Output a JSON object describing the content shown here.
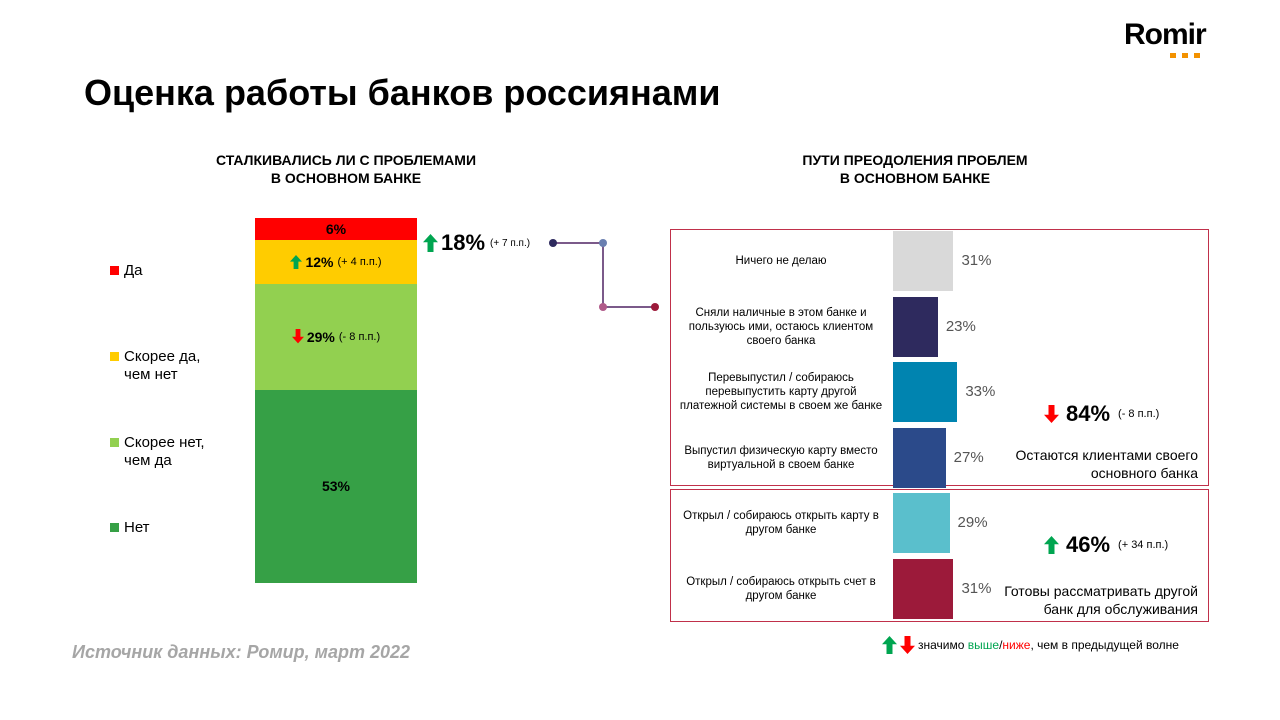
{
  "logo": "Romir",
  "title": "Оценка работы банков россиянами",
  "source": "Источник данных: Ромир, март 2022",
  "footnote": {
    "prefix": "значимо",
    "higher": "выше",
    "separator": "/",
    "lower": "ниже",
    "suffix": ", чем в предыдущей волне"
  },
  "chart_data": [
    {
      "type": "stacked-bar",
      "title": [
        "СТАЛКИВАЛИСЬ ЛИ С ПРОБЛЕМАМИ",
        "В ОСНОВНОМ БАНКЕ"
      ],
      "series": [
        {
          "name": "Да",
          "color": "#ff0000",
          "values": [
            6
          ],
          "value_labels": [
            "6%"
          ]
        },
        {
          "name": "Скорее да, чем нет",
          "color": "#ffcc00",
          "values": [
            12
          ],
          "value_labels": [
            "12%"
          ],
          "change": "(+ 4 п.п.)",
          "direction": "up"
        },
        {
          "name": "Скорее нет, чем да",
          "color": "#92d050",
          "values": [
            29
          ],
          "value_labels": [
            "29%"
          ],
          "change": "(- 8 п.п.)",
          "direction": "down"
        },
        {
          "name": "Нет",
          "color": "#36a046",
          "values": [
            53
          ],
          "value_labels": [
            "53%"
          ]
        }
      ],
      "summary": {
        "value": 18,
        "value_label": "18%",
        "change": "(+ 7 п.п.)",
        "direction": "up"
      }
    },
    {
      "type": "hbar",
      "title": [
        "ПУТИ ПРЕОДОЛЕНИЯ ПРОБЛЕМ",
        "В ОСНОВНОМ БАНКЕ"
      ],
      "categories": [
        "Ничего не делаю",
        "Сняли наличные в этом банке и пользуюсь ими, остаюсь клиентом своего банка",
        "Перевыпустил / собираюсь перевыпустить карту другой платежной системы в своем же банке",
        "Выпустил физическую карту вместо виртуальной в своем банке",
        "Открыл / собираюсь открыть карту в другом банке",
        "Открыл / собираюсь открыть счет в другом банке"
      ],
      "values": [
        31,
        23,
        33,
        27,
        29,
        31
      ],
      "value_labels": [
        "31%",
        "23%",
        "33%",
        "27%",
        "29%",
        "31%"
      ],
      "colors": [
        "#d9d9d9",
        "#2e2a5e",
        "#0084b0",
        "#2b4a8a",
        "#5abfcc",
        "#9c1a3a"
      ],
      "groups": [
        {
          "value": 84,
          "value_label": "84%",
          "change": "(- 8 п.п.)",
          "direction": "down",
          "text": "Остаются клиентами своего основного банка"
        },
        {
          "value": 46,
          "value_label": "46%",
          "change": "(+ 34 п.п.)",
          "direction": "up",
          "text": "Готовы рассматривать другой банк для обслуживания"
        }
      ]
    }
  ]
}
